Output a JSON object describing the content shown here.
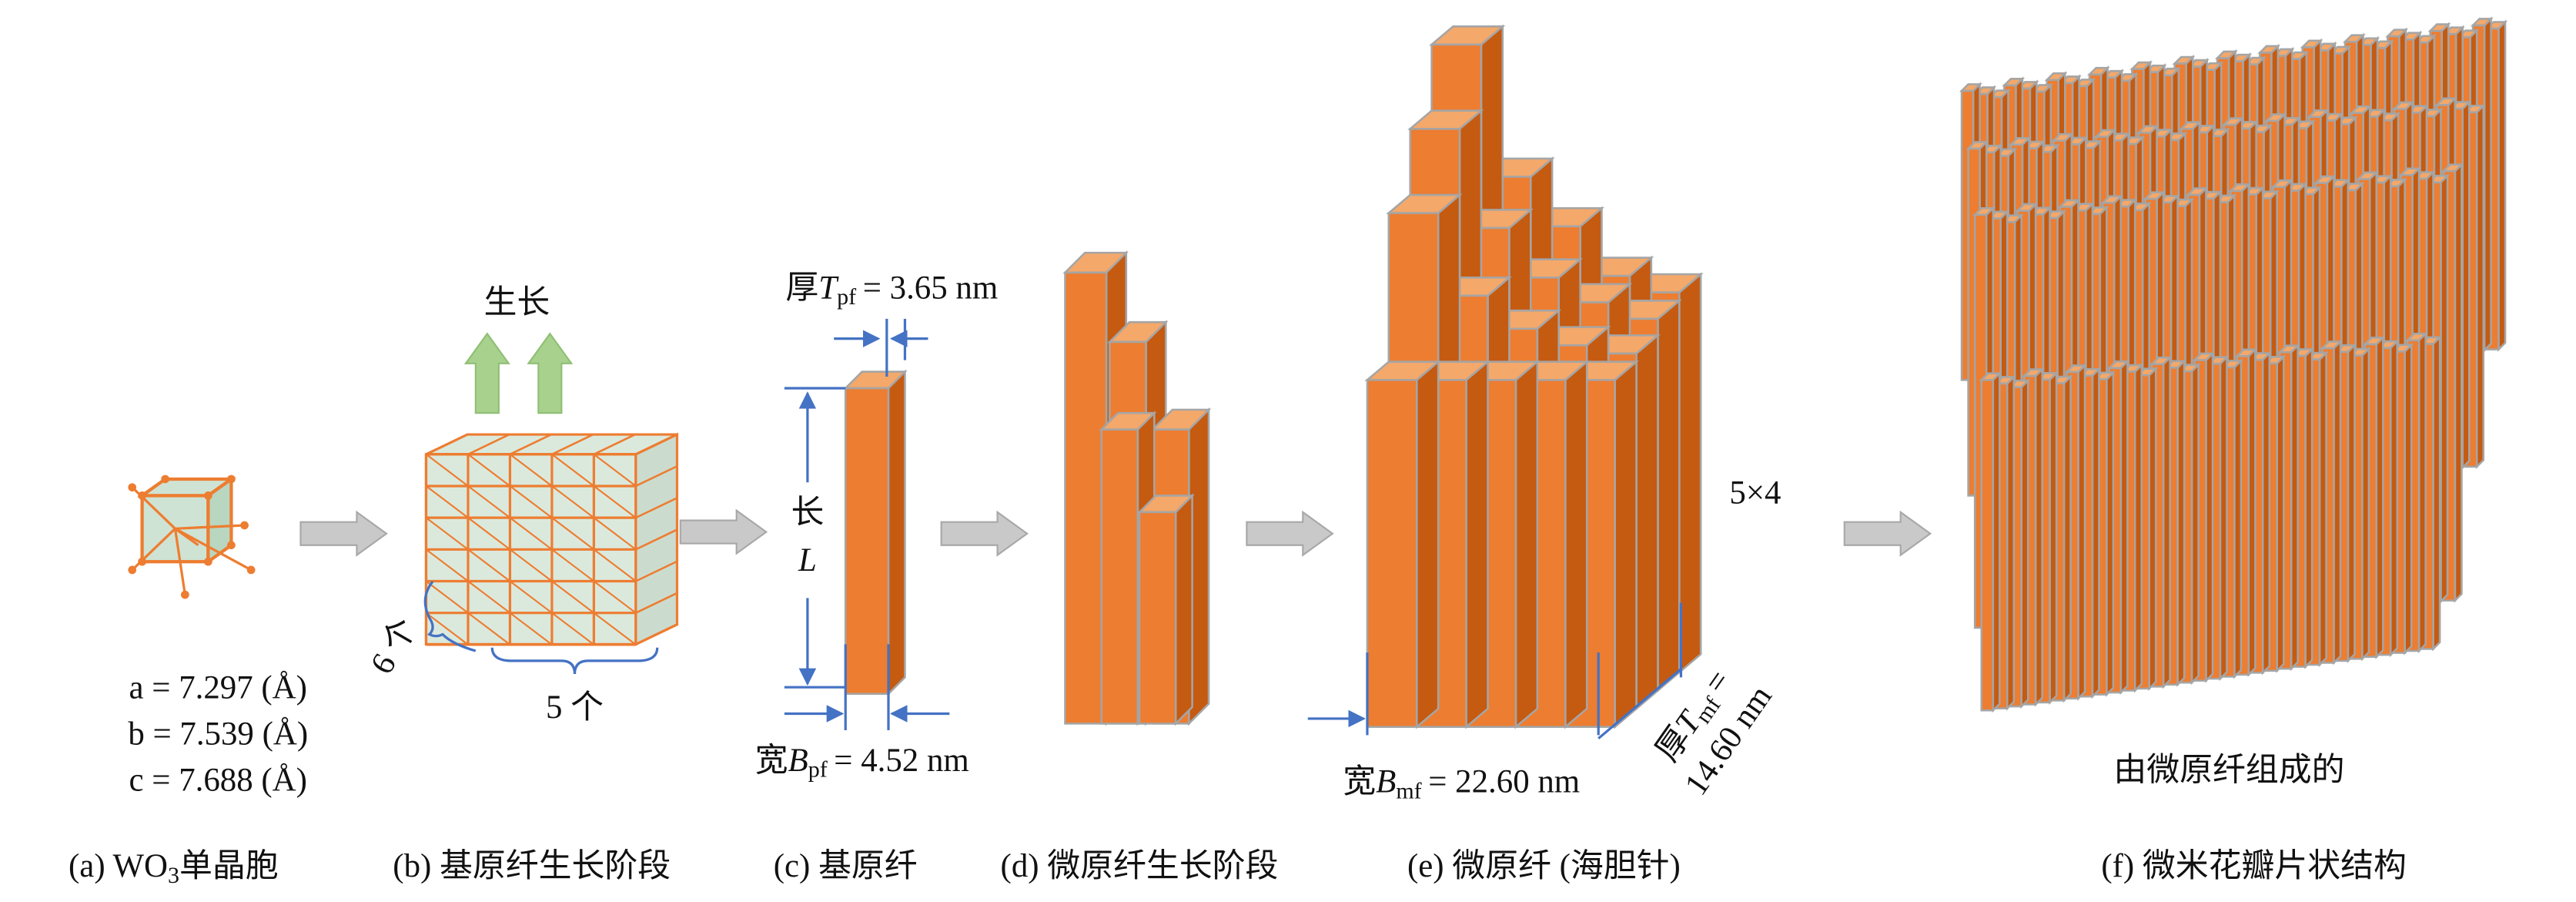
{
  "lattice": [
    "a = 7.297 (Å)",
    "b = 7.539 (Å)",
    "c = 7.688 (Å)"
  ],
  "growth": "生长",
  "count_depth": "6 个",
  "count_width": "5 个",
  "pf_thickness": {
    "prefix": "厚",
    "symbol": "T",
    "sub": "pf",
    "relation": "=",
    "value": "3.65 nm"
  },
  "length": {
    "label": "长",
    "symbol": "L"
  },
  "pf_width": {
    "prefix": "宽",
    "symbol": "B",
    "sub": "pf",
    "relation": "=",
    "value": "4.52 nm"
  },
  "multiplier": "5×4",
  "mf_width": {
    "prefix": "宽",
    "symbol": "B",
    "sub": "mf",
    "relation": "=",
    "value": "22.60 nm"
  },
  "mf_thickness": {
    "prefix": "厚",
    "symbol": "T",
    "sub": "mf",
    "relation": "=",
    "value": "14.60 nm"
  },
  "petal_note": "由微原纤组成的",
  "captions": [
    {
      "text": "(a) WO",
      "sub": "3",
      "tail": "单晶胞"
    },
    "(b) 基原纤生长阶段",
    "(c) 基原纤",
    "(d) 微原纤生长阶段",
    "(e) 微原纤 (海胆针)",
    "(f) 微米花瓣片状结构"
  ]
}
